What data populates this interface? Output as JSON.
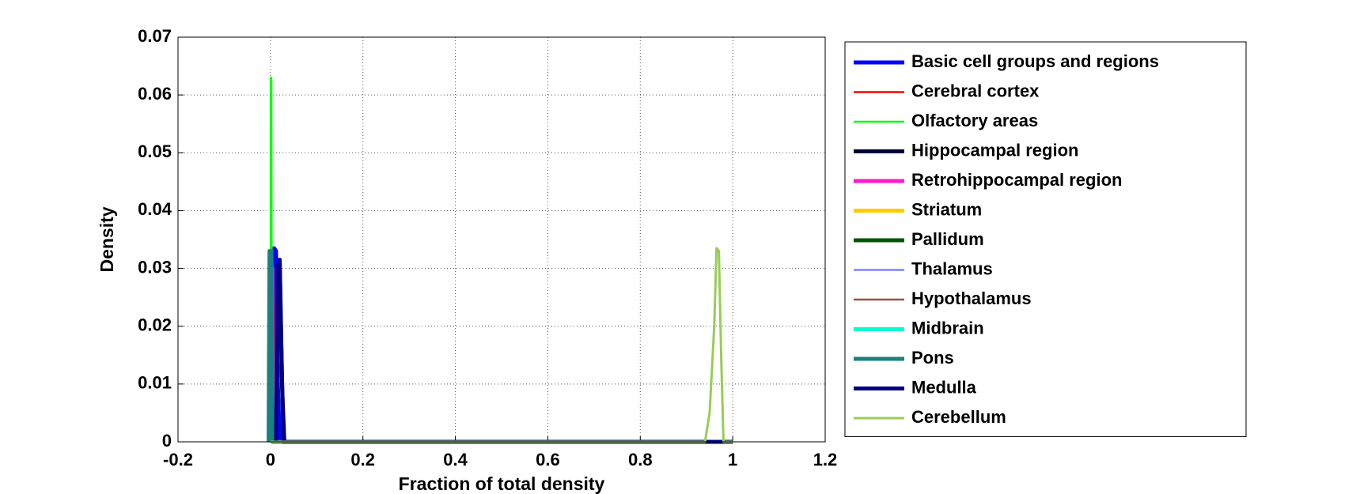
{
  "chart_data": {
    "type": "line",
    "xlabel": "Fraction of total density",
    "ylabel": "Density",
    "xlim": [
      -0.2,
      1.2
    ],
    "xticks": [
      -0.2,
      0,
      0.2,
      0.4,
      0.6,
      0.8,
      1,
      1.2
    ],
    "ylim": [
      0,
      0.07
    ],
    "yticks": [
      0,
      0.01,
      0.02,
      0.03,
      0.04,
      0.05,
      0.06,
      0.07
    ],
    "grid": true,
    "legend": "east-outside",
    "series": [
      {
        "name": "Basic cell groups and regions",
        "color": "#0000ff",
        "x": [
          0,
          0.005,
          0.008,
          0.012,
          0.016,
          0.02,
          1
        ],
        "values": [
          0,
          0.01,
          0.0335,
          0.033,
          0.01,
          0,
          0
        ]
      },
      {
        "name": "Cerebral cortex",
        "color": "#ff0000",
        "x": [
          0,
          0.002,
          0.004,
          0.006,
          1
        ],
        "values": [
          0,
          0.03,
          0.03,
          0,
          0
        ]
      },
      {
        "name": "Olfactory areas",
        "color": "#00ff00",
        "x": [
          0,
          0.001,
          0.002,
          0.003,
          1
        ],
        "values": [
          0,
          0.063,
          0.063,
          0,
          0
        ]
      },
      {
        "name": "Hippocampal region",
        "color": "#000033",
        "x": [
          0.01,
          0.015,
          0.02,
          0.025,
          0.03,
          1
        ],
        "values": [
          0,
          0.03,
          0.031,
          0.01,
          0,
          0
        ]
      },
      {
        "name": "Retrohippocampal region",
        "color": "#ff1acd",
        "x": [
          0,
          0.002,
          0.004,
          0.006,
          1
        ],
        "values": [
          0,
          0.03,
          0.03,
          0,
          0
        ]
      },
      {
        "name": "Striatum",
        "color": "#ffcc00",
        "x": [
          -0.002,
          0,
          0.002,
          0.004,
          1
        ],
        "values": [
          0,
          0.033,
          0.033,
          0,
          0
        ]
      },
      {
        "name": "Pallidum",
        "color": "#005500",
        "x": [
          -0.002,
          0,
          0.002,
          0.004,
          1
        ],
        "values": [
          0,
          0.032,
          0.032,
          0,
          0
        ]
      },
      {
        "name": "Thalamus",
        "color": "#8080ff",
        "x": [
          0,
          0.002,
          0.004,
          0.006,
          1
        ],
        "values": [
          0,
          0.03,
          0.03,
          0,
          0
        ]
      },
      {
        "name": "Hypothalamus",
        "color": "#a0503c",
        "x": [
          0,
          0.002,
          0.004,
          0.006,
          1
        ],
        "values": [
          0,
          0.03,
          0.03,
          0,
          0
        ]
      },
      {
        "name": "Midbrain",
        "color": "#00ffcc",
        "x": [
          -0.002,
          0,
          0.002,
          0.004,
          1
        ],
        "values": [
          0,
          0.032,
          0.032,
          0,
          0
        ]
      },
      {
        "name": "Pons",
        "color": "#1a8080",
        "x": [
          -0.004,
          -0.002,
          0.002,
          0.004,
          1
        ],
        "values": [
          0,
          0.033,
          0.033,
          0,
          0
        ]
      },
      {
        "name": "Medulla",
        "color": "#000080",
        "x": [
          0.012,
          0.016,
          0.02,
          0.024,
          0.028,
          1
        ],
        "values": [
          0,
          0.03,
          0.0315,
          0.015,
          0,
          0
        ]
      },
      {
        "name": "Cerebellum",
        "color": "#99cc55",
        "x": [
          0,
          0.94,
          0.95,
          0.96,
          0.965,
          0.97,
          0.975,
          0.98,
          1
        ],
        "values": [
          0,
          0,
          0.005,
          0.02,
          0.0335,
          0.033,
          0.015,
          0,
          0
        ]
      }
    ]
  }
}
